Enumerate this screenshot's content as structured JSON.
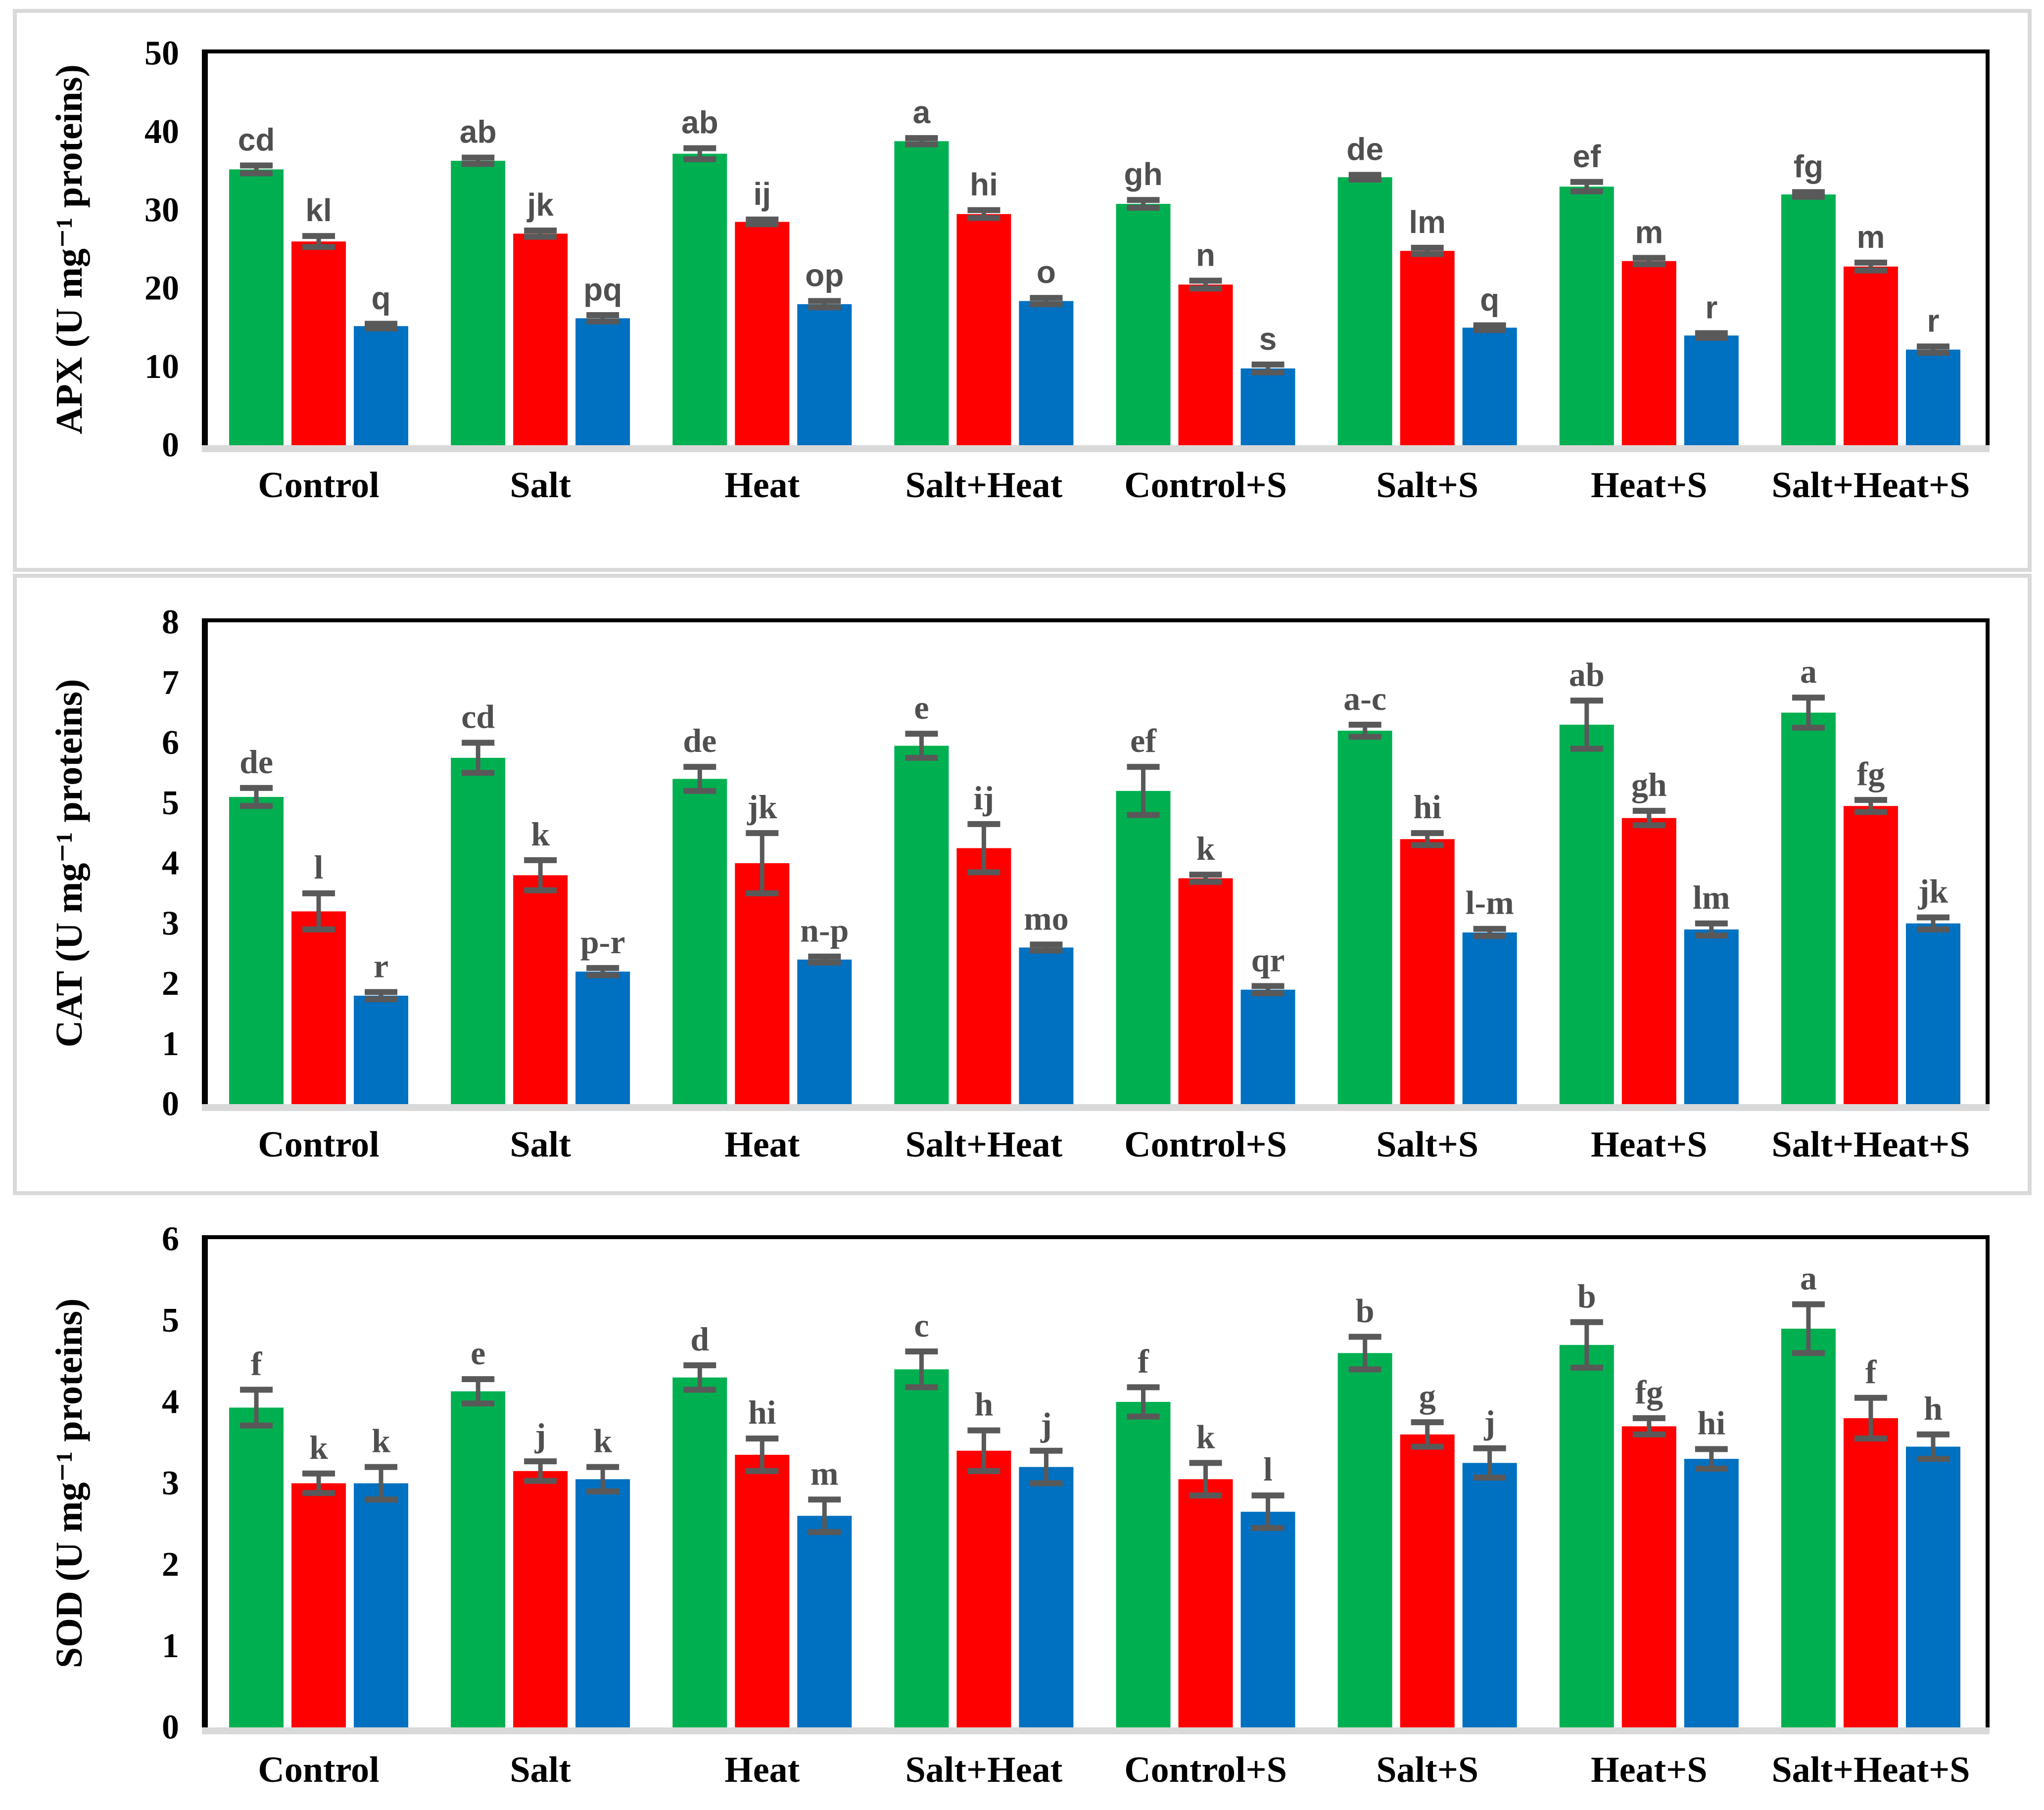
{
  "figure": {
    "background": "#FFFFFF",
    "panel_border_color": "#D9D9D9",
    "axis_color": "#000000",
    "baseline_color": "#D9D9D9",
    "error_bar_color": "#595959",
    "letter_color": "#4F4F4F",
    "bar_colors": {
      "green": "#00B050",
      "red": "#FF0000",
      "blue": "#0070C0"
    }
  },
  "chart_data": [
    {
      "type": "bar",
      "title": "APX",
      "ylabel": "APX (U mg⁻¹ proteins)",
      "ylim": [
        0,
        50
      ],
      "yticks": [
        0,
        10,
        20,
        30,
        40,
        50
      ],
      "grid": false,
      "legend": false,
      "letter_font": "sans",
      "categories": [
        "Control",
        "Salt",
        "Heat",
        "Salt+Heat",
        "Control+S",
        "Salt+S",
        "Heat+S",
        "Salt+Heat+S"
      ],
      "series": [
        {
          "name": "green",
          "color": "#00B050",
          "values": [
            35.2,
            36.3,
            37.2,
            38.8,
            30.8,
            34.2,
            33.0,
            32.0
          ],
          "errors": [
            0.5,
            0.4,
            0.7,
            0.4,
            0.5,
            0.3,
            0.6,
            0.3
          ],
          "letters": [
            "cd",
            "ab",
            "ab",
            "a",
            "gh",
            "de",
            "ef",
            "fg"
          ]
        },
        {
          "name": "red",
          "color": "#FF0000",
          "values": [
            26.0,
            27.0,
            28.5,
            29.5,
            20.5,
            24.8,
            23.5,
            22.8
          ],
          "errors": [
            0.7,
            0.4,
            0.3,
            0.5,
            0.5,
            0.4,
            0.4,
            0.5
          ],
          "letters": [
            "kl",
            "jk",
            "ij",
            "hi",
            "n",
            "lm",
            "m",
            "m"
          ]
        },
        {
          "name": "blue",
          "color": "#0070C0",
          "values": [
            15.2,
            16.2,
            18.0,
            18.4,
            9.8,
            15.0,
            14.0,
            12.2
          ],
          "errors": [
            0.3,
            0.4,
            0.4,
            0.4,
            0.5,
            0.3,
            0.3,
            0.4
          ],
          "letters": [
            "q",
            "pq",
            "op",
            "o",
            "s",
            "q",
            "r",
            "r"
          ]
        }
      ]
    },
    {
      "type": "bar",
      "title": "CAT",
      "ylabel": "CAT (U mg⁻¹ proteins)",
      "ylim": [
        0,
        8
      ],
      "yticks": [
        0,
        1,
        2,
        3,
        4,
        5,
        6,
        7,
        8
      ],
      "grid": false,
      "legend": false,
      "letter_font": "serif",
      "categories": [
        "Control",
        "Salt",
        "Heat",
        "Salt+Heat",
        "Control+S",
        "Salt+S",
        "Heat+S",
        "Salt+Heat+S"
      ],
      "series": [
        {
          "name": "green",
          "color": "#00B050",
          "values": [
            5.1,
            5.75,
            5.4,
            5.95,
            5.2,
            6.2,
            6.3,
            6.5
          ],
          "errors": [
            0.15,
            0.25,
            0.2,
            0.2,
            0.4,
            0.1,
            0.4,
            0.25
          ],
          "letters": [
            "de",
            "cd",
            "de",
            "e",
            "ef",
            "a-c",
            "ab",
            "a"
          ]
        },
        {
          "name": "red",
          "color": "#FF0000",
          "values": [
            3.2,
            3.8,
            4.0,
            4.25,
            3.75,
            4.4,
            4.75,
            4.95
          ],
          "errors": [
            0.3,
            0.25,
            0.5,
            0.4,
            0.06,
            0.1,
            0.12,
            0.1
          ],
          "letters": [
            "l",
            "k",
            "jk",
            "ij",
            "k",
            "hi",
            "gh",
            "fg"
          ]
        },
        {
          "name": "blue",
          "color": "#0070C0",
          "values": [
            1.8,
            2.2,
            2.4,
            2.6,
            1.9,
            2.85,
            2.9,
            3.0
          ],
          "errors": [
            0.06,
            0.06,
            0.05,
            0.05,
            0.06,
            0.06,
            0.1,
            0.1
          ],
          "letters": [
            "r",
            "p-r",
            "n-p",
            "mo",
            "qr",
            "l-m",
            "lm",
            "jk"
          ]
        }
      ]
    },
    {
      "type": "bar",
      "title": "SOD",
      "ylabel": "SOD  (U mg⁻¹ proteins)",
      "ylim": [
        0,
        6
      ],
      "yticks": [
        0,
        1,
        2,
        3,
        4,
        5,
        6
      ],
      "grid": false,
      "legend": false,
      "letter_font": "serif",
      "categories": [
        "Control",
        "Salt",
        "Heat",
        "Salt+Heat",
        "Control+S",
        "Salt+S",
        "Heat+S",
        "Salt+Heat+S"
      ],
      "series": [
        {
          "name": "green",
          "color": "#00B050",
          "values": [
            3.93,
            4.13,
            4.3,
            4.4,
            4.0,
            4.6,
            4.7,
            4.9
          ],
          "errors": [
            0.22,
            0.15,
            0.15,
            0.22,
            0.18,
            0.2,
            0.28,
            0.3
          ],
          "letters": [
            "f",
            "e",
            "d",
            "c",
            "f",
            "b",
            "b",
            "a"
          ]
        },
        {
          "name": "red",
          "color": "#FF0000",
          "values": [
            3.0,
            3.15,
            3.35,
            3.4,
            3.05,
            3.6,
            3.7,
            3.8
          ],
          "errors": [
            0.12,
            0.12,
            0.2,
            0.25,
            0.2,
            0.15,
            0.1,
            0.25
          ],
          "letters": [
            "k",
            "j",
            "hi",
            "h",
            "k",
            "g",
            "fg",
            "f"
          ]
        },
        {
          "name": "blue",
          "color": "#0070C0",
          "values": [
            3.0,
            3.05,
            2.6,
            3.2,
            2.65,
            3.25,
            3.3,
            3.45
          ],
          "errors": [
            0.2,
            0.15,
            0.2,
            0.2,
            0.2,
            0.18,
            0.12,
            0.15
          ],
          "letters": [
            "k",
            "k",
            "m",
            "j",
            "l",
            "j",
            "hi",
            "h"
          ]
        }
      ]
    }
  ]
}
